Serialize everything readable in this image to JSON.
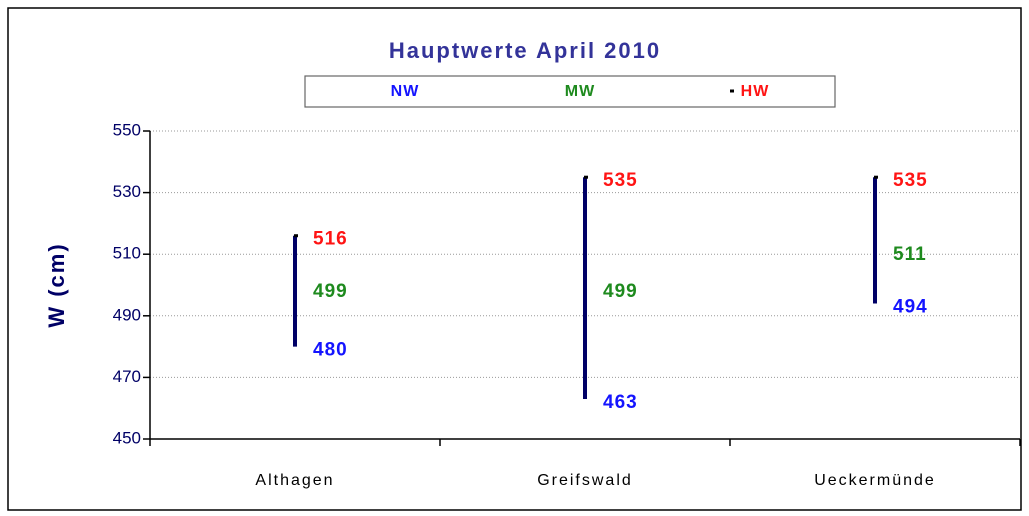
{
  "chart_data": {
    "type": "hilo",
    "title": "Hauptwerte April 2010",
    "y_label": "W (cm)",
    "categories": [
      "Althagen",
      "Greifswald",
      "Ueckermünde"
    ],
    "series": [
      {
        "name": "NW",
        "color": "#1414ff",
        "values": [
          480,
          463,
          494
        ]
      },
      {
        "name": "MW",
        "color": "#1e8a1e",
        "values": [
          499,
          499,
          511
        ]
      },
      {
        "name": "HW",
        "color": "#ff1414",
        "values": [
          516,
          535,
          535
        ]
      }
    ],
    "range_color": "#000066",
    "ylim": [
      450,
      550
    ],
    "yticks": [
      450,
      470,
      490,
      510,
      530,
      550
    ],
    "grid": true
  }
}
